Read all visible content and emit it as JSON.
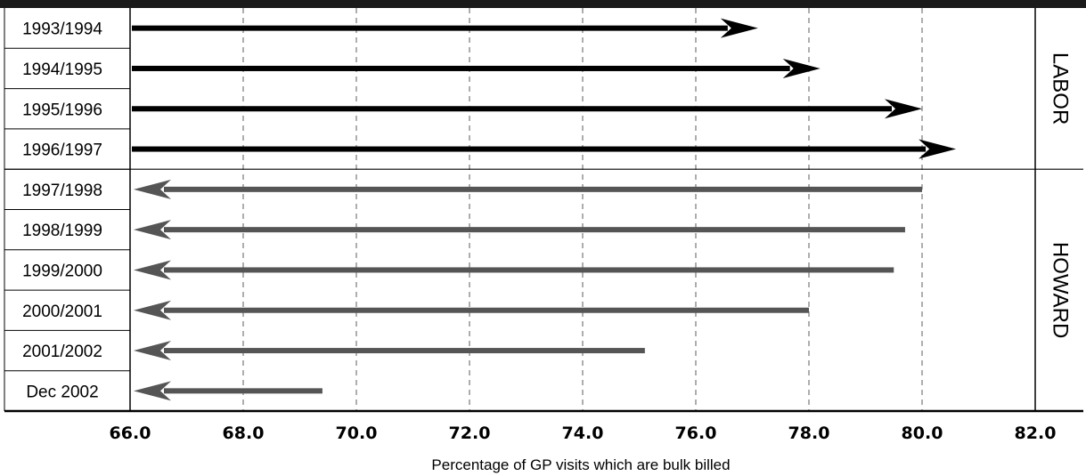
{
  "chart_data": {
    "type": "bar",
    "orientation": "horizontal",
    "xlabel": "Percentage of GP visits which are bulk billed",
    "xlim": [
      66.0,
      82.0
    ],
    "x_ticks": [
      "66.0",
      "68.0",
      "70.0",
      "72.0",
      "74.0",
      "76.0",
      "78.0",
      "80.0",
      "82.0"
    ],
    "grid": "vertical dashed",
    "categories": [
      "1993/1994",
      "1994/1995",
      "1995/1996",
      "1996/1997",
      "1997/1998",
      "1998/1999",
      "1999/2000",
      "2000/2001",
      "2001/2002",
      "Dec 2002"
    ],
    "values": [
      77.1,
      78.2,
      80.0,
      80.6,
      80.0,
      79.7,
      79.5,
      78.0,
      75.1,
      69.4
    ],
    "groups": [
      {
        "label": "LABOR",
        "categories": [
          "1993/1994",
          "1994/1995",
          "1995/1996",
          "1996/1997"
        ],
        "color": "#000000",
        "arrow": "right"
      },
      {
        "label": "HOWARD",
        "categories": [
          "1997/1998",
          "1998/1999",
          "1999/2000",
          "2000/2001",
          "2001/2002",
          "Dec 2002"
        ],
        "color": "#555555",
        "arrow": "left"
      }
    ]
  }
}
